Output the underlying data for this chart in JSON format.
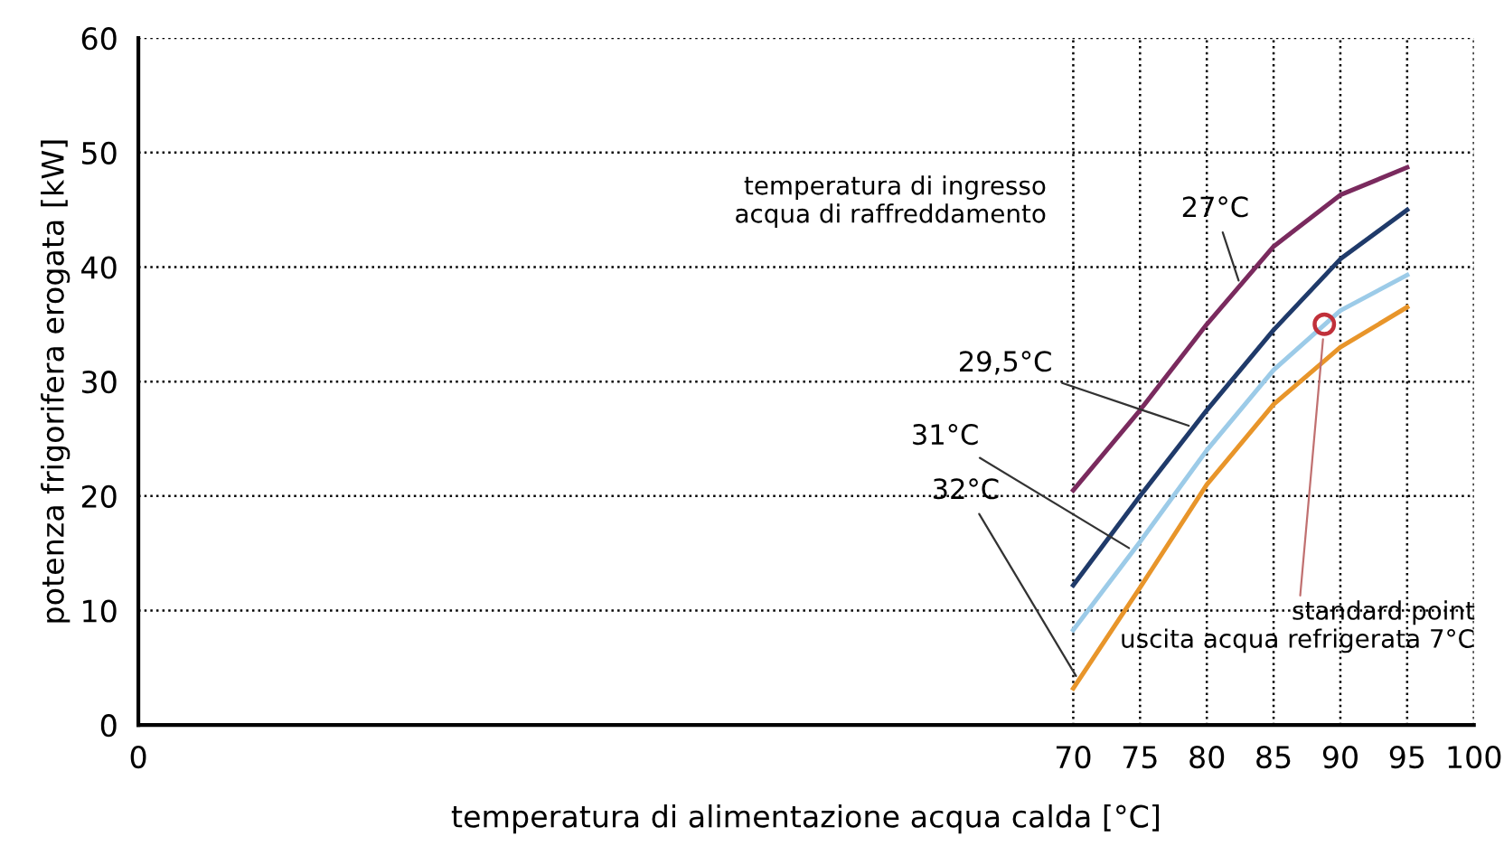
{
  "chart_data": {
    "type": "line",
    "xlabel": "temperatura di alimentazione acqua calda [°C]",
    "ylabel": "potenza frigorifera erogata [kW]",
    "x": [
      70,
      75,
      80,
      85,
      90,
      95
    ],
    "series": [
      {
        "name": "27°C",
        "color": "#7a2a5e",
        "values": [
          20.5,
          27.5,
          35,
          41.8,
          46.3,
          48.7
        ]
      },
      {
        "name": "29,5°C",
        "color": "#1f3a6a",
        "values": [
          12.2,
          20,
          27.5,
          34.5,
          40.7,
          45
        ]
      },
      {
        "name": "31°C",
        "color": "#9ccbe8",
        "values": [
          8.3,
          16,
          24,
          31,
          36.2,
          39.3
        ]
      },
      {
        "name": "32°C",
        "color": "#e8952a",
        "values": [
          3.2,
          12,
          21,
          28,
          33,
          36.5
        ]
      },
      {
        "type": "scatter",
        "color": "#c0303a",
        "x": [
          88.8
        ],
        "values": [
          35
        ],
        "marker": "circle"
      }
    ],
    "annotations": [
      "temperatura di ingresso\nacqua di raffreddamento",
      {
        "text": "standard point\nuscita acqua refrigerata 7°C",
        "x": 88.8,
        "y": 35
      }
    ],
    "xlim": [
      0,
      100
    ],
    "xticks": [
      0,
      70,
      75,
      80,
      85,
      90,
      95,
      100
    ],
    "ylim": [
      0,
      60
    ],
    "yticks": [
      0,
      10,
      20,
      30,
      40,
      50,
      60
    ],
    "grid": true,
    "legend": false,
    "marker": "none",
    "line_style": "solid"
  }
}
